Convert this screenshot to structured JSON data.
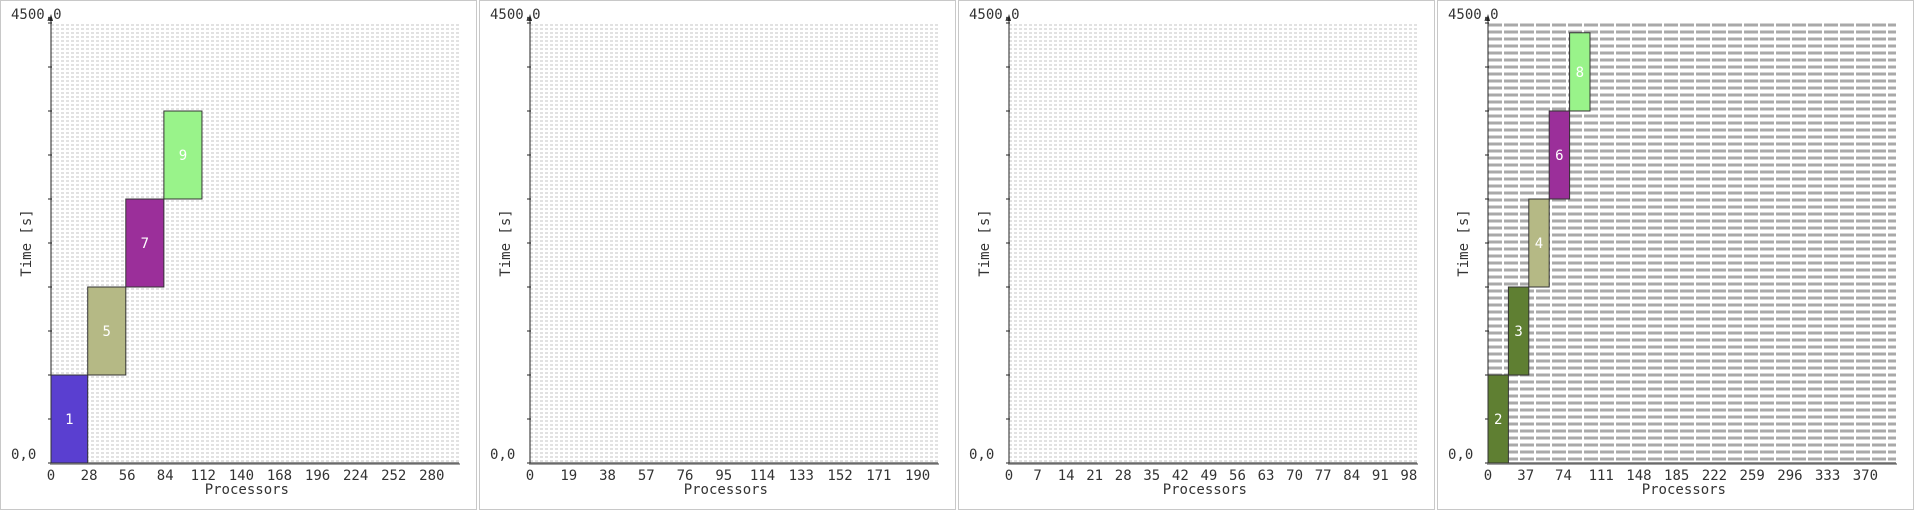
{
  "chart_data": [
    {
      "type": "gantt",
      "ylabel": "Time [s]",
      "xlabel": "Processors",
      "ymin_label": "0,0",
      "ymax_label": "4500,0",
      "ylim": [
        0,
        4500
      ],
      "xlim": [
        0,
        300
      ],
      "xticks": [
        0,
        28,
        56,
        84,
        112,
        140,
        168,
        196,
        224,
        252,
        280
      ],
      "grid_density": "fine",
      "tasks": [
        {
          "label": "1",
          "x0": 0,
          "x1": 27,
          "y0": 0,
          "y1": 900,
          "color": "#5a3fd0"
        },
        {
          "label": "5",
          "x0": 27,
          "x1": 55,
          "y0": 900,
          "y1": 1800,
          "color": "#b5b985"
        },
        {
          "label": "7",
          "x0": 55,
          "x1": 83,
          "y0": 1800,
          "y1": 2700,
          "color": "#9b2f9a"
        },
        {
          "label": "9",
          "x0": 83,
          "x1": 111,
          "y0": 2700,
          "y1": 3600,
          "color": "#99f38a"
        }
      ]
    },
    {
      "type": "gantt",
      "ylabel": "Time [s]",
      "xlabel": "Processors",
      "ymin_label": "0,0",
      "ymax_label": "4500,0",
      "ylim": [
        0,
        4500
      ],
      "xlim": [
        0,
        200
      ],
      "xticks": [
        0,
        19,
        38,
        57,
        76,
        95,
        114,
        133,
        152,
        171,
        190
      ],
      "grid_density": "fine",
      "tasks": []
    },
    {
      "type": "gantt",
      "ylabel": "Time [s]",
      "xlabel": "Processors",
      "ymin_label": "0,0",
      "ymax_label": "4500,0",
      "ylim": [
        0,
        4500
      ],
      "xlim": [
        0,
        100
      ],
      "xticks": [
        0,
        7,
        14,
        21,
        28,
        35,
        42,
        49,
        56,
        63,
        70,
        77,
        84,
        91,
        98
      ],
      "grid_density": "fine",
      "tasks": []
    },
    {
      "type": "gantt",
      "ylabel": "Time [s]",
      "xlabel": "Processors",
      "ymin_label": "0,0",
      "ymax_label": "4500,0",
      "ylim": [
        0,
        4500
      ],
      "xlim": [
        0,
        400
      ],
      "xticks": [
        0,
        37,
        74,
        111,
        148,
        185,
        222,
        259,
        296,
        333,
        370
      ],
      "grid_density": "coarse",
      "tasks": [
        {
          "label": "2",
          "x0": 0,
          "x1": 20,
          "y0": 0,
          "y1": 900,
          "color": "#5f7f32"
        },
        {
          "label": "3",
          "x0": 20,
          "x1": 40,
          "y0": 900,
          "y1": 1800,
          "color": "#5f7f32"
        },
        {
          "label": "4",
          "x0": 40,
          "x1": 60,
          "y0": 1800,
          "y1": 2700,
          "color": "#b5b985"
        },
        {
          "label": "6",
          "x0": 60,
          "x1": 80,
          "y0": 2700,
          "y1": 3600,
          "color": "#9b2f9a"
        },
        {
          "label": "8",
          "x0": 80,
          "x1": 100,
          "y0": 3600,
          "y1": 4400,
          "color": "#99f38a"
        }
      ]
    }
  ]
}
